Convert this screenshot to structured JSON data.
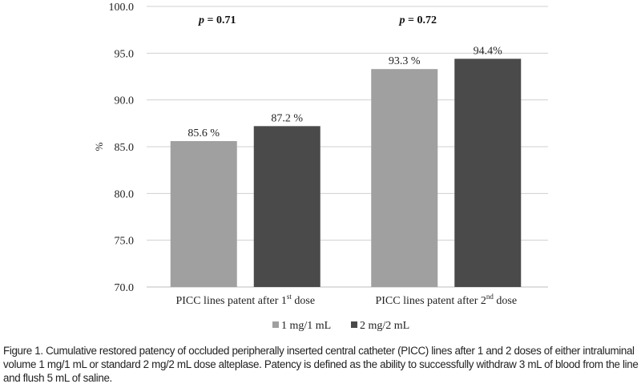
{
  "chart_data": {
    "type": "bar",
    "categories": [
      "PICC lines patent after 1st dose",
      "PICC lines patent after 2nd dose"
    ],
    "series": [
      {
        "name": "1 mg/1 mL",
        "values": [
          85.6,
          93.3
        ],
        "labels": [
          "85.6 %",
          "93.3 %"
        ],
        "color": "#a0a0a0"
      },
      {
        "name": "2 mg/2 mL",
        "values": [
          87.2,
          94.4
        ],
        "labels": [
          "87.2 %",
          "94.4%"
        ],
        "color": "#4a4a4a"
      }
    ],
    "annotations": [
      {
        "prefix": "p",
        "text": " = 0.71"
      },
      {
        "prefix": "p",
        "text": " = 0.72"
      }
    ],
    "ylabel": "%",
    "xlabel": "",
    "ylim": [
      70,
      100
    ],
    "yticks": [
      "70.0",
      "75.0",
      "80.0",
      "85.0",
      "90.0",
      "95.0",
      "100.0"
    ],
    "grid": true,
    "legend": "bottom"
  },
  "caption": "Figure 1. Cumulative restored patency of occluded peripherally inserted central catheter (PICC) lines after 1 and 2 doses of either intraluminal volume 1 mg/1 mL or standard 2 mg/2 mL dose alteplase. Patency is defined as the ability to successfully withdraw 3 mL of blood from the line and flush 5 mL of saline."
}
